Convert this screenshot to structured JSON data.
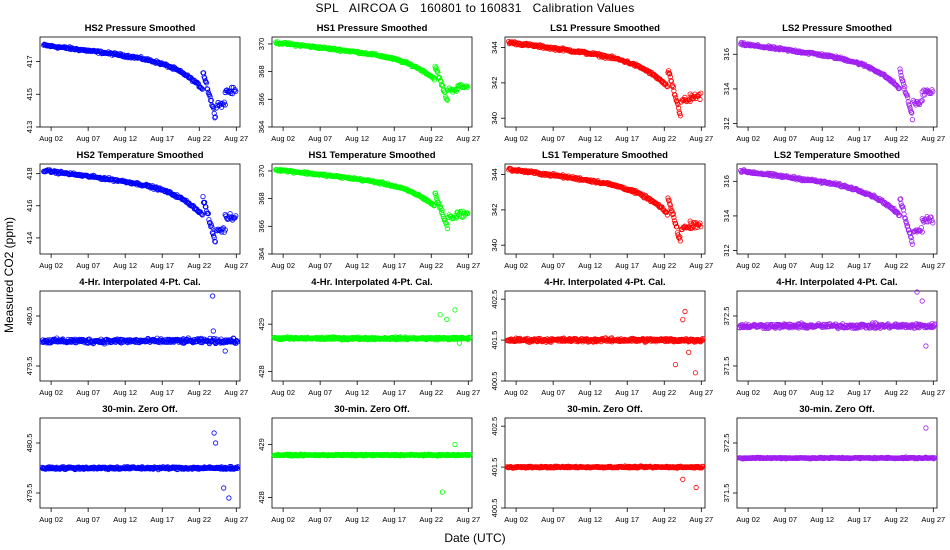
{
  "page": {
    "title": "SPL   AIRCOA G   160801 to 160831   Calibration Values",
    "ylabel": "Measured CO2 (ppm)",
    "xlabel": "Date (UTC)"
  },
  "chart_data": [
    {
      "type": "scatter",
      "title": "HS2 Pressure Smoothed",
      "color": "#0000ff",
      "pattern": "drift",
      "start": 418.0,
      "drop": 1.2,
      "tailDrop": 3.0,
      "endVal": 415.2,
      "noise": 0.12,
      "ylim": [
        413,
        418.5
      ],
      "yticks": [
        413,
        415,
        417
      ],
      "xticks": [
        "Aug 02",
        "Aug 07",
        "Aug 12",
        "Aug 17",
        "Aug 22",
        "Aug 27"
      ]
    },
    {
      "type": "scatter",
      "title": "HS1 Pressure Smoothed",
      "color": "#00ff00",
      "pattern": "drift",
      "start": 370.1,
      "drop": 1.3,
      "tailDrop": 2.7,
      "endVal": 366.9,
      "noise": 0.12,
      "ylim": [
        364,
        370.5
      ],
      "yticks": [
        364,
        366,
        368,
        370
      ],
      "xticks": [
        "Aug 02",
        "Aug 07",
        "Aug 12",
        "Aug 17",
        "Aug 22",
        "Aug 27"
      ]
    },
    {
      "type": "scatter",
      "title": "LS1 Pressure Smoothed",
      "color": "#ff0000",
      "pattern": "drift",
      "start": 344.3,
      "drop": 1.2,
      "tailDrop": 2.7,
      "endVal": 341.2,
      "noise": 0.12,
      "ylim": [
        339.5,
        344.6
      ],
      "yticks": [
        340,
        342,
        344
      ],
      "xticks": [
        "Aug 02",
        "Aug 07",
        "Aug 12",
        "Aug 17",
        "Aug 22",
        "Aug 27"
      ]
    },
    {
      "type": "scatter",
      "title": "LS2 Pressure Smoothed",
      "color": "#a020f0",
      "pattern": "drift",
      "start": 316.6,
      "drop": 1.2,
      "tailDrop": 2.8,
      "endVal": 313.8,
      "noise": 0.12,
      "ylim": [
        311.8,
        317
      ],
      "yticks": [
        312,
        314,
        316
      ],
      "xticks": [
        "Aug 02",
        "Aug 07",
        "Aug 12",
        "Aug 17",
        "Aug 22",
        "Aug 27"
      ]
    },
    {
      "type": "scatter",
      "title": "HS2 Temperature Smoothed",
      "color": "#0000ff",
      "pattern": "drift",
      "start": 418.2,
      "drop": 1.3,
      "tailDrop": 3.0,
      "endVal": 415.3,
      "noise": 0.12,
      "ylim": [
        413,
        418.6
      ],
      "yticks": [
        414,
        416,
        418
      ],
      "xticks": [
        "Aug 02",
        "Aug 07",
        "Aug 12",
        "Aug 17",
        "Aug 22",
        "Aug 27"
      ]
    },
    {
      "type": "scatter",
      "title": "HS1 Temperature Smoothed",
      "color": "#00ff00",
      "pattern": "drift",
      "start": 370.1,
      "drop": 1.3,
      "tailDrop": 2.7,
      "endVal": 366.9,
      "noise": 0.12,
      "ylim": [
        364,
        370.5
      ],
      "yticks": [
        364,
        366,
        368,
        370
      ],
      "xticks": [
        "Aug 02",
        "Aug 07",
        "Aug 12",
        "Aug 17",
        "Aug 22",
        "Aug 27"
      ]
    },
    {
      "type": "scatter",
      "title": "LS1 Temperature Smoothed",
      "color": "#ff0000",
      "pattern": "drift",
      "start": 344.3,
      "drop": 1.2,
      "tailDrop": 2.7,
      "endVal": 341.2,
      "noise": 0.12,
      "ylim": [
        339.5,
        344.6
      ],
      "yticks": [
        340,
        342,
        344
      ],
      "xticks": [
        "Aug 02",
        "Aug 07",
        "Aug 12",
        "Aug 17",
        "Aug 22",
        "Aug 27"
      ]
    },
    {
      "type": "scatter",
      "title": "LS2 Temperature Smoothed",
      "color": "#a020f0",
      "pattern": "drift",
      "start": 316.6,
      "drop": 1.2,
      "tailDrop": 2.8,
      "endVal": 313.8,
      "noise": 0.12,
      "ylim": [
        311.8,
        317
      ],
      "yticks": [
        312,
        314,
        316
      ],
      "xticks": [
        "Aug 02",
        "Aug 07",
        "Aug 12",
        "Aug 17",
        "Aug 22",
        "Aug 27"
      ]
    },
    {
      "type": "scatter",
      "title": "4-Hr. Interpolated 4-Pt. Cal.",
      "color": "#0000ff",
      "pattern": "flat",
      "base": 480.0,
      "noise": 0.07,
      "outliers": [
        [
          23.8,
          480.9
        ],
        [
          23.9,
          480.2
        ],
        [
          25.5,
          479.8
        ]
      ],
      "ylim": [
        479.2,
        481.0
      ],
      "yticks": [
        479.5,
        480.5
      ],
      "xticks": [
        "Aug 02",
        "Aug 07",
        "Aug 12",
        "Aug 17",
        "Aug 22",
        "Aug 27"
      ]
    },
    {
      "type": "scatter",
      "title": "4-Hr. Interpolated 4-Pt. Cal.",
      "color": "#00ff00",
      "pattern": "flat",
      "base": 428.7,
      "noise": 0.04,
      "outliers": [
        [
          23.2,
          429.2
        ],
        [
          24.1,
          429.1
        ],
        [
          25.2,
          429.3
        ],
        [
          25.8,
          428.6
        ]
      ],
      "ylim": [
        427.8,
        429.7
      ],
      "yticks": [
        428.0,
        429.0
      ],
      "xticks": [
        "Aug 02",
        "Aug 07",
        "Aug 12",
        "Aug 17",
        "Aug 22",
        "Aug 27"
      ]
    },
    {
      "type": "scatter",
      "title": "4-Hr. Interpolated 4-Pt. Cal.",
      "color": "#ff0000",
      "pattern": "flat",
      "base": 401.5,
      "noise": 0.07,
      "outliers": [
        [
          23.5,
          400.9
        ],
        [
          24.8,
          402.2
        ],
        [
          24.5,
          402.0
        ],
        [
          25.3,
          401.2
        ],
        [
          26.2,
          400.7
        ]
      ],
      "ylim": [
        400.5,
        402.7
      ],
      "yticks": [
        400.5,
        401.5,
        402.5
      ],
      "xticks": [
        "Aug 02",
        "Aug 07",
        "Aug 12",
        "Aug 17",
        "Aug 22",
        "Aug 27"
      ]
    },
    {
      "type": "scatter",
      "title": "4-Hr. Interpolated 4-Pt. Cal.",
      "color": "#a020f0",
      "pattern": "flat",
      "base": 372.3,
      "noise": 0.07,
      "outliers": [
        [
          24.8,
          373.0
        ],
        [
          25.5,
          372.8
        ],
        [
          26.0,
          371.9
        ]
      ],
      "ylim": [
        371.2,
        373.0
      ],
      "yticks": [
        371.5,
        372.5
      ],
      "xticks": [
        "Aug 02",
        "Aug 07",
        "Aug 12",
        "Aug 17",
        "Aug 22",
        "Aug 27"
      ]
    },
    {
      "type": "scatter",
      "title": "30-min. Zero Off.",
      "color": "#0000ff",
      "pattern": "flat",
      "base": 480.0,
      "noise": 0.04,
      "outliers": [
        [
          24.0,
          480.7
        ],
        [
          24.2,
          480.5
        ],
        [
          26.0,
          479.4
        ],
        [
          25.3,
          479.6
        ]
      ],
      "ylim": [
        479.2,
        481.0
      ],
      "yticks": [
        479.5,
        480.5
      ],
      "xticks": [
        "Aug 02",
        "Aug 07",
        "Aug 12",
        "Aug 17",
        "Aug 22",
        "Aug 27"
      ]
    },
    {
      "type": "scatter",
      "title": "30-min. Zero Off.",
      "color": "#00ff00",
      "pattern": "flat",
      "base": 428.8,
      "noise": 0.02,
      "outliers": [
        [
          23.5,
          428.1
        ],
        [
          25.2,
          429.0
        ]
      ],
      "ylim": [
        427.8,
        429.5
      ],
      "yticks": [
        428.0,
        429.0
      ],
      "xticks": [
        "Aug 02",
        "Aug 07",
        "Aug 12",
        "Aug 17",
        "Aug 22",
        "Aug 27"
      ]
    },
    {
      "type": "scatter",
      "title": "30-min. Zero Off.",
      "color": "#ff0000",
      "pattern": "flat",
      "base": 401.5,
      "noise": 0.03,
      "outliers": [
        [
          24.5,
          401.2
        ],
        [
          26.3,
          401.0
        ]
      ],
      "ylim": [
        400.5,
        402.7
      ],
      "yticks": [
        400.5,
        401.5,
        402.5
      ],
      "xticks": [
        "Aug 02",
        "Aug 07",
        "Aug 12",
        "Aug 17",
        "Aug 22",
        "Aug 27"
      ]
    },
    {
      "type": "scatter",
      "title": "30-min. Zero Off.",
      "color": "#a020f0",
      "pattern": "flat",
      "base": 372.2,
      "noise": 0.02,
      "outliers": [
        [
          26.0,
          372.8
        ]
      ],
      "ylim": [
        371.2,
        373.0
      ],
      "yticks": [
        371.5,
        372.5
      ],
      "xticks": [
        "Aug 02",
        "Aug 07",
        "Aug 12",
        "Aug 17",
        "Aug 22",
        "Aug 27"
      ]
    }
  ]
}
